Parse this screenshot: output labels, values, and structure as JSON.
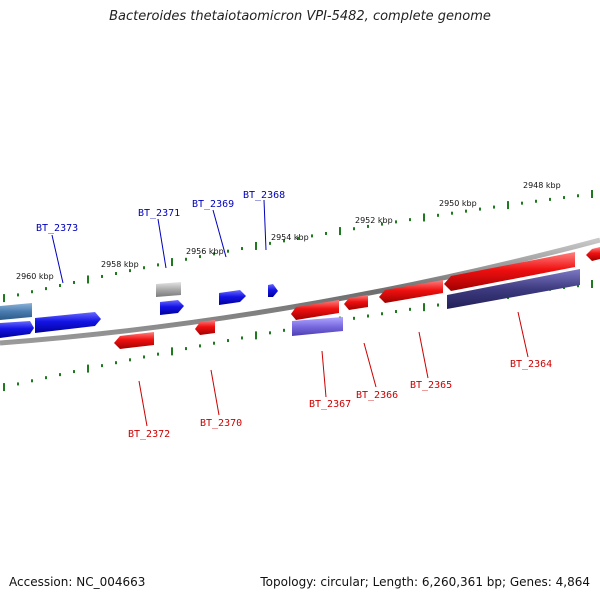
{
  "title": "Bacteroides thetaiotaomicron VPI-5482, complete genome",
  "footer": {
    "accession": "Accession: NC_004663",
    "topology": "Topology: circular; Length: 6,260,361 bp; Genes: 4,864"
  },
  "colors": {
    "backbone": "#8a8a8a",
    "forward_gene": "#1010e0",
    "reverse_gene": "#ee1111",
    "forward_label": "#0000bb",
    "reverse_label": "#cc0000",
    "tick": "#1f7a1f",
    "pseudogene_gray": "#a8a8a8",
    "steel_blue": "#4a7cb0",
    "lavender": "#7a6ae0",
    "dark_slate": "#3d3a80"
  },
  "kbp_markers": [
    {
      "label": "2960 kbp"
    },
    {
      "label": "2958 kbp"
    },
    {
      "label": "2956 kbp"
    },
    {
      "label": "2954 kbp"
    },
    {
      "label": "2952 kbp"
    },
    {
      "label": "2950 kbp"
    },
    {
      "label": "2948 kbp"
    }
  ],
  "gene_labels": {
    "forward": [
      "BT_2373",
      "BT_2371",
      "BT_2369",
      "BT_2368"
    ],
    "reverse": [
      "BT_2372",
      "BT_2370",
      "BT_2367",
      "BT_2366",
      "BT_2365",
      "BT_2364"
    ]
  }
}
